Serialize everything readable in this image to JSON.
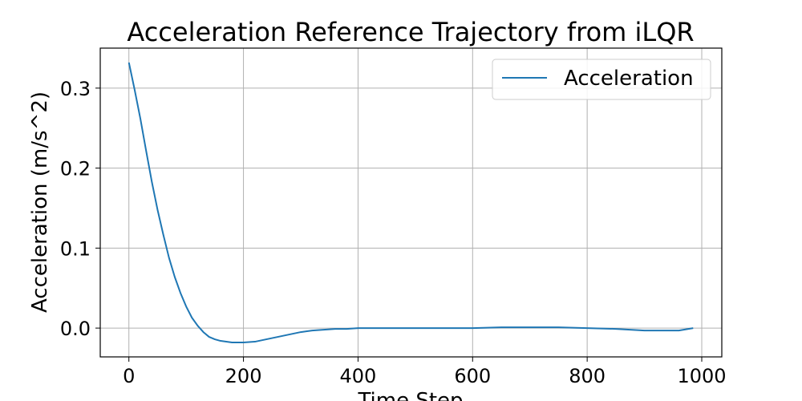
{
  "chart_data": {
    "type": "line",
    "title": "Acceleration Reference Trajectory from iLQR",
    "xlabel": "Time Step",
    "ylabel": "Acceleration (m/s^2)",
    "xlim": [
      -50,
      1035
    ],
    "ylim": [
      -0.036,
      0.35
    ],
    "xticks": [
      0,
      200,
      400,
      600,
      800,
      1000
    ],
    "yticks": [
      0.0,
      0.1,
      0.2,
      0.3
    ],
    "xtick_labels": [
      "0",
      "200",
      "400",
      "600",
      "800",
      "1000"
    ],
    "ytick_labels": [
      "0.0",
      "0.1",
      "0.2",
      "0.3"
    ],
    "grid": true,
    "legend_position": "top-right",
    "series": [
      {
        "name": "Acceleration",
        "color": "#1f77b4",
        "x": [
          0,
          10,
          20,
          30,
          40,
          50,
          60,
          70,
          80,
          90,
          100,
          110,
          120,
          130,
          140,
          150,
          160,
          170,
          180,
          190,
          200,
          220,
          240,
          260,
          280,
          300,
          320,
          340,
          360,
          380,
          400,
          450,
          500,
          550,
          600,
          650,
          700,
          750,
          800,
          850,
          900,
          930,
          960,
          985
        ],
        "y": [
          0.332,
          0.298,
          0.262,
          0.222,
          0.183,
          0.148,
          0.117,
          0.088,
          0.064,
          0.044,
          0.027,
          0.013,
          0.003,
          -0.005,
          -0.011,
          -0.014,
          -0.016,
          -0.017,
          -0.018,
          -0.018,
          -0.018,
          -0.017,
          -0.014,
          -0.011,
          -0.008,
          -0.005,
          -0.003,
          -0.002,
          -0.001,
          -0.001,
          0.0,
          0.0,
          0.0,
          0.0,
          0.0,
          0.001,
          0.001,
          0.001,
          0.0,
          -0.001,
          -0.003,
          -0.003,
          -0.003,
          0.0
        ]
      }
    ]
  }
}
